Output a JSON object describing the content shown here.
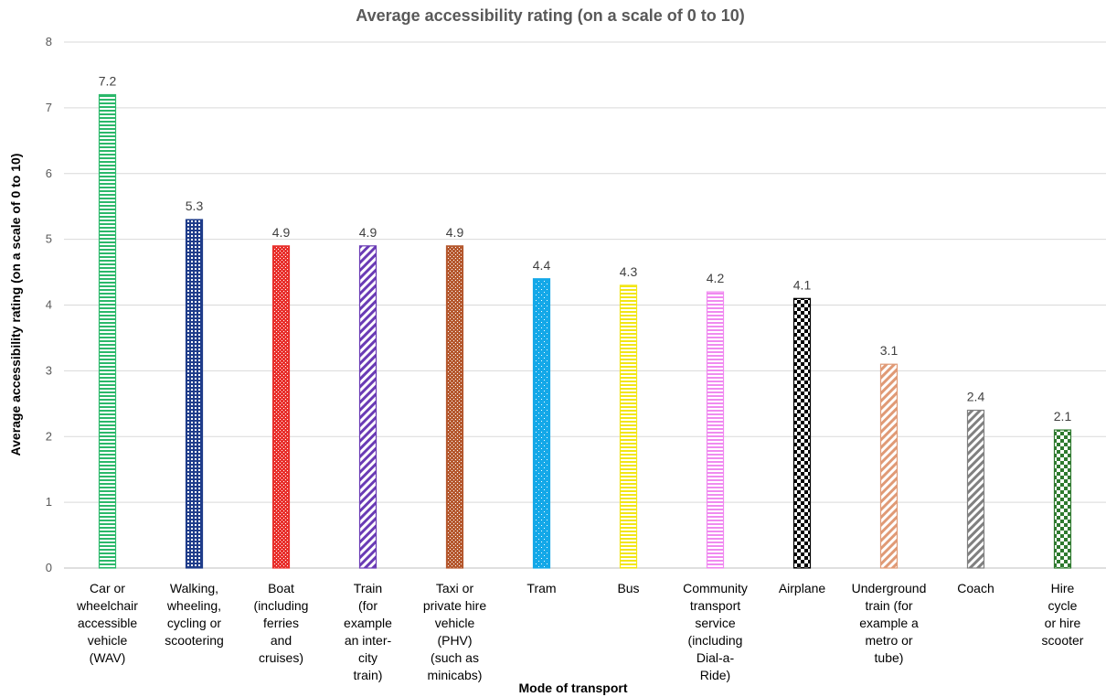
{
  "chart_data": {
    "type": "bar",
    "title": "Average accessibility rating (on a scale of 0 to 10)",
    "xlabel": "Mode of transport",
    "ylabel": "Average accessibility rating (on a scale of 0 to 10)",
    "ylim": [
      0,
      8
    ],
    "yticks": [
      "0",
      "1",
      "2",
      "3",
      "4",
      "5",
      "6",
      "7",
      "8"
    ],
    "grid": true,
    "legend": "none",
    "categories": [
      [
        "Car or",
        "wheelchair",
        "accessible",
        "vehicle",
        "(WAV)"
      ],
      [
        "Walking,",
        "wheeling,",
        "cycling or",
        "scootering"
      ],
      [
        "Boat",
        "(including",
        "ferries",
        "and",
        "cruises)"
      ],
      [
        "Train",
        "(for",
        "example",
        "an inter-",
        "city",
        "train)"
      ],
      [
        "Taxi or",
        "private hire",
        "vehicle",
        "(PHV)",
        "(such as",
        "minicabs)"
      ],
      [
        "Tram"
      ],
      [
        "Bus"
      ],
      [
        "Community",
        "transport",
        "service",
        "(including",
        "Dial-a-",
        "Ride)"
      ],
      [
        "Airplane"
      ],
      [
        "Underground",
        "train (for",
        "example a",
        "metro or",
        "tube)"
      ],
      [
        "Coach"
      ],
      [
        "Hire",
        "cycle",
        "or hire",
        "scooter"
      ]
    ],
    "values": [
      7.2,
      5.3,
      4.9,
      4.9,
      4.9,
      4.4,
      4.3,
      4.2,
      4.1,
      3.1,
      2.4,
      2.1
    ],
    "data_labels": [
      "7.2",
      "5.3",
      "4.9",
      "4.9",
      "4.9",
      "4.4",
      "4.3",
      "4.2",
      "4.1",
      "3.1",
      "2.4",
      "2.1"
    ],
    "colors": [
      "#2bb86a",
      "#1f3c8a",
      "#e8302c",
      "#6a3bb5",
      "#b5582e",
      "#14a8e8",
      "#f2e614",
      "#f08af0",
      "#000000",
      "#e09a76",
      "#808080",
      "#2e7a2e"
    ],
    "patterns": [
      "hlines",
      "grid",
      "dots",
      "diag",
      "dots",
      "dots-light",
      "hlines",
      "hlines",
      "checker",
      "diag",
      "diag",
      "checker"
    ]
  }
}
